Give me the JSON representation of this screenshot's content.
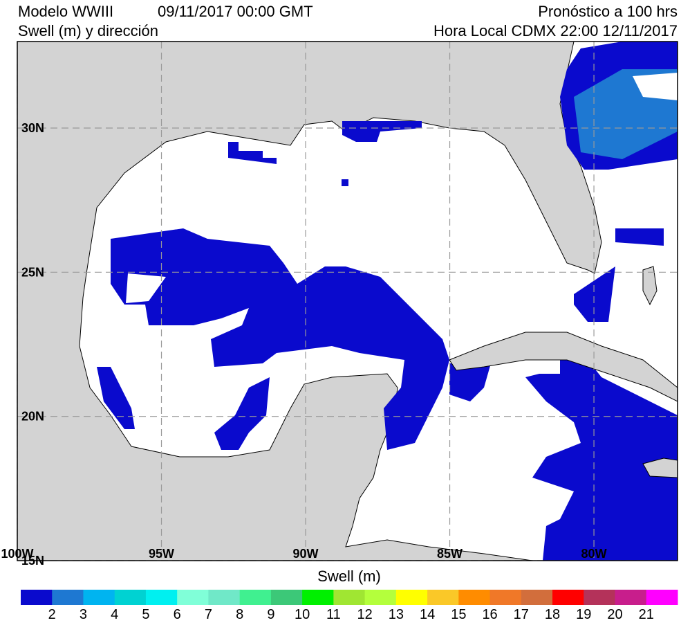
{
  "header": {
    "model": "Modelo WWIII",
    "init_time": "09/11/2017 00:00 GMT",
    "variable": "Swell (m) y dirección",
    "forecast": "Pronóstico a 100 hrs",
    "local_time": "Hora Local CDMX 22:00 12/11/2017"
  },
  "map": {
    "lon_range": [
      -100,
      -77.1
    ],
    "lat_range": [
      15,
      33
    ],
    "lat_ticks": [
      {
        "value": 30,
        "label": "30N"
      },
      {
        "value": 25,
        "label": "25N"
      },
      {
        "value": 20,
        "label": "20N"
      },
      {
        "value": 15,
        "label": "15N"
      }
    ],
    "lon_ticks": [
      {
        "value": -100,
        "label": "100W"
      },
      {
        "value": -95,
        "label": "95W"
      },
      {
        "value": -90,
        "label": "90W"
      },
      {
        "value": -85,
        "label": "85W"
      },
      {
        "value": -80,
        "label": "80W"
      }
    ],
    "grid": true
  },
  "colorbar": {
    "title": "Swell (m)",
    "colors": [
      "#0a0acd",
      "#1e78d2",
      "#00b4f0",
      "#00d2d2",
      "#00f0f0",
      "#80ffd8",
      "#70e8c8",
      "#40f090",
      "#3cc878",
      "#00f000",
      "#a0e632",
      "#b4ff3c",
      "#ffff00",
      "#fac828",
      "#ff8c00",
      "#f07828",
      "#d26e3c",
      "#ff0000",
      "#b4325a",
      "#c81e8c",
      "#ff00ff"
    ],
    "ticks": [
      2,
      3,
      4,
      5,
      6,
      7,
      8,
      9,
      10,
      11,
      12,
      13,
      14,
      15,
      16,
      17,
      18,
      19,
      20,
      21
    ]
  }
}
